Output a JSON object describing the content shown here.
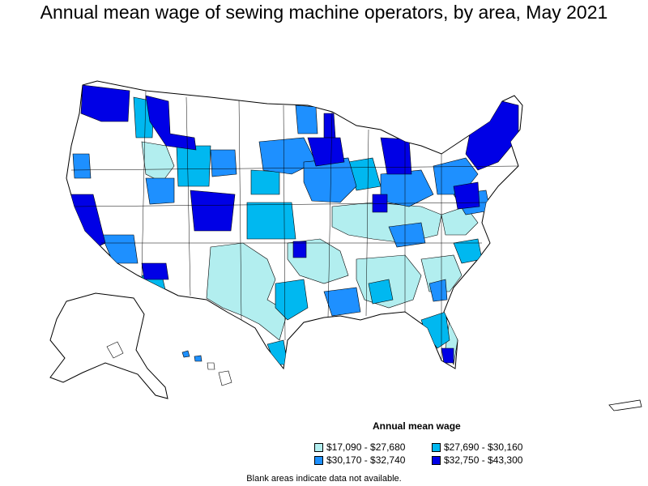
{
  "title": "Annual mean wage of sewing machine operators, by area, May 2021",
  "legend": {
    "title": "Annual mean wage",
    "items": [
      {
        "label": "$17,090 - $27,680",
        "color": "#b2eeef"
      },
      {
        "label": "$27,690 - $30,160",
        "color": "#00b8f0"
      },
      {
        "label": "$30,170 - $32,740",
        "color": "#1e90ff"
      },
      {
        "label": "$32,750 - $43,300",
        "color": "#0000e6"
      }
    ]
  },
  "footnote": "Blank areas indicate data not available.",
  "colors": {
    "no_data": "#ffffff",
    "border": "#000000"
  }
}
